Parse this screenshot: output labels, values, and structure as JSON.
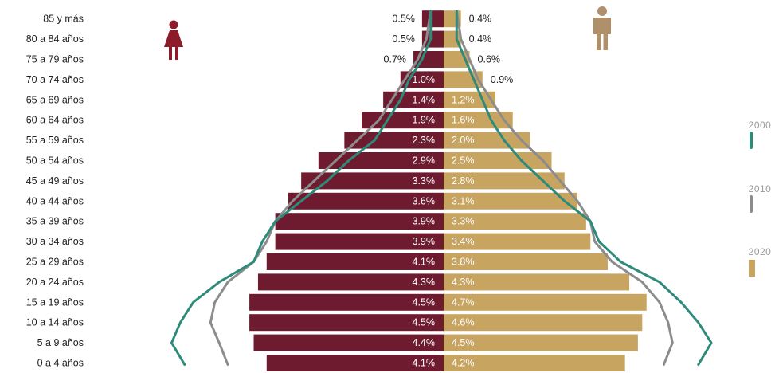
{
  "colors": {
    "female_2020": "#6e1a2f",
    "male_2020": "#c8a461",
    "line_2000": "#2e8b7a",
    "line_2010": "#8c8c8c",
    "female_icon": "#8e1b2a",
    "male_icon": "#b0906b",
    "legend_text": "#9a9a9a"
  },
  "icons": {
    "female": "female-person-icon",
    "male": "male-person-icon"
  },
  "chart_data": {
    "type": "bar",
    "orientation": "horizontal-population-pyramid",
    "categories": [
      "0 a 4 años",
      "5 a 9 años",
      "10 a 14 años",
      "15 a 19 años",
      "20 a 24 años",
      "25 a 29 años",
      "30 a 34 años",
      "35 a 39 años",
      "40 a 44 años",
      "45 a 49 años",
      "50 a 54 años",
      "55 a 59 años",
      "60 a 64 años",
      "65 a 69 años",
      "70 a 74 años",
      "75 a 79 años",
      "80 a 84 años",
      "85 y más"
    ],
    "series": [
      {
        "side": "female",
        "year": "2020",
        "values": [
          4.1,
          4.4,
          4.5,
          4.5,
          4.3,
          4.1,
          3.9,
          3.9,
          3.6,
          3.3,
          2.9,
          2.3,
          1.9,
          1.4,
          1.0,
          0.7,
          0.5,
          0.5
        ]
      },
      {
        "side": "male",
        "year": "2020",
        "values": [
          4.2,
          4.5,
          4.6,
          4.7,
          4.3,
          3.8,
          3.4,
          3.3,
          3.1,
          2.8,
          2.5,
          2.0,
          1.6,
          1.2,
          0.9,
          0.6,
          0.4,
          0.4
        ]
      },
      {
        "side": "female",
        "year": "2000",
        "values": [
          6.0,
          6.3,
          6.1,
          5.8,
          5.2,
          4.4,
          4.2,
          3.9,
          3.3,
          2.7,
          2.2,
          1.6,
          1.3,
          1.0,
          0.8,
          0.5,
          0.3,
          0.3
        ]
      },
      {
        "side": "male",
        "year": "2000",
        "values": [
          5.9,
          6.2,
          5.9,
          5.5,
          5.0,
          4.1,
          3.6,
          3.4,
          2.8,
          2.3,
          1.8,
          1.4,
          1.1,
          0.9,
          0.7,
          0.5,
          0.3,
          0.3
        ]
      },
      {
        "side": "female",
        "year": "2010",
        "values": [
          5.0,
          5.2,
          5.4,
          5.3,
          5.0,
          4.4,
          4.1,
          3.9,
          3.5,
          3.0,
          2.5,
          2.0,
          1.5,
          1.2,
          0.9,
          0.6,
          0.4,
          0.3
        ]
      },
      {
        "side": "male",
        "year": "2010",
        "values": [
          5.1,
          5.3,
          5.2,
          5.0,
          4.6,
          3.9,
          3.5,
          3.4,
          3.1,
          2.7,
          2.3,
          1.8,
          1.4,
          1.1,
          0.8,
          0.6,
          0.4,
          0.3
        ]
      }
    ],
    "female_labels": [
      "4.1%",
      "4.4%",
      "4.5%",
      "4.5%",
      "4.3%",
      "4.1%",
      "3.9%",
      "3.9%",
      "3.6%",
      "3.3%",
      "2.9%",
      "2.3%",
      "1.9%",
      "1.4%",
      "1.0%",
      "0.7%",
      "0.5%",
      "0.5%"
    ],
    "male_labels": [
      "4.2%",
      "4.5%",
      "4.6%",
      "4.7%",
      "4.3%",
      "3.8%",
      "3.4%",
      "3.3%",
      "3.1%",
      "2.8%",
      "2.5%",
      "2.0%",
      "1.6%",
      "1.2%",
      "0.9%",
      "0.6%",
      "0.4%",
      "0.4%"
    ],
    "legend": [
      {
        "year": "2000",
        "style": "line",
        "color": "#2e8b7a"
      },
      {
        "year": "2010",
        "style": "line",
        "color": "#8c8c8c"
      },
      {
        "year": "2020",
        "style": "bar",
        "color": "#c8a461"
      }
    ],
    "grid": false,
    "legend_position": "right"
  }
}
